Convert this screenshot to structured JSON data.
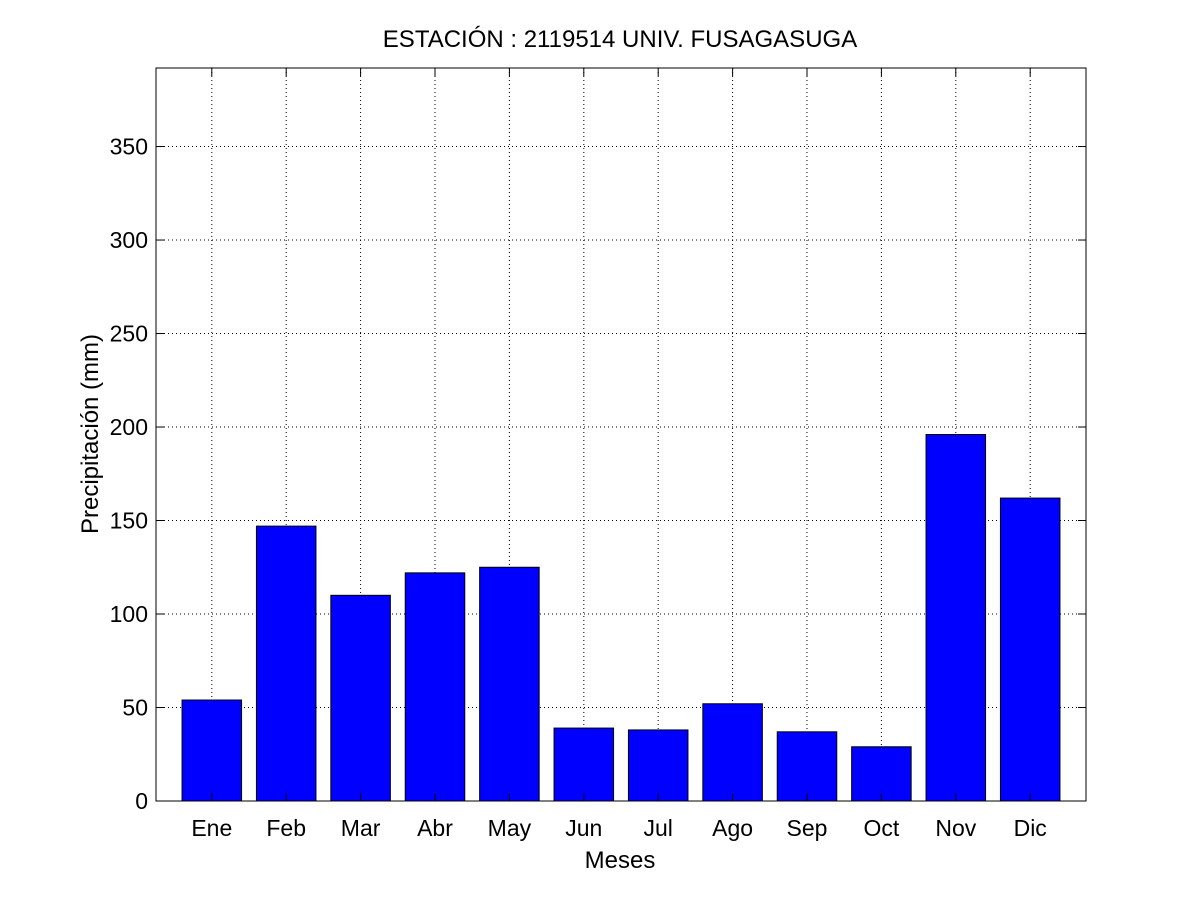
{
  "chart_data": {
    "type": "bar",
    "title": "ESTACIÓN :  2119514  UNIV. FUSAGASUGA",
    "xlabel": "Meses",
    "ylabel": "Precipitación (mm)",
    "categories": [
      "Ene",
      "Feb",
      "Mar",
      "Abr",
      "May",
      "Jun",
      "Jul",
      "Ago",
      "Sep",
      "Oct",
      "Nov",
      "Dic"
    ],
    "values": [
      54,
      147,
      110,
      122,
      125,
      39,
      38,
      52,
      37,
      29,
      196,
      162
    ],
    "ylim": [
      0,
      392
    ],
    "yticks": [
      0,
      50,
      100,
      150,
      200,
      250,
      300,
      350
    ],
    "grid": true,
    "legend": "none",
    "bar_color": "#0000ff",
    "edge_color": "#000000"
  }
}
